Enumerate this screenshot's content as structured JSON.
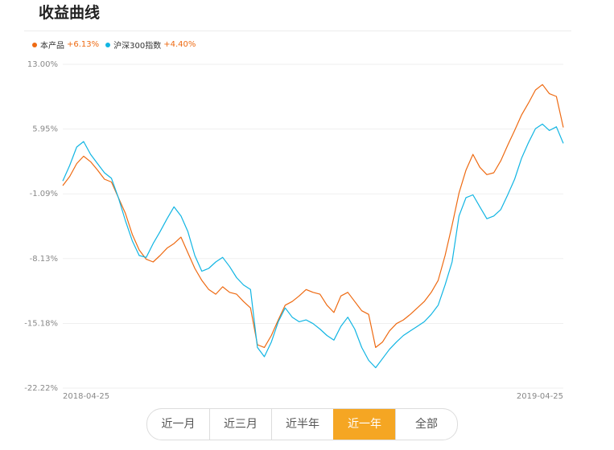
{
  "page": {
    "title": "收益曲线"
  },
  "legend": [
    {
      "name": "本产品",
      "value": "+6.13%",
      "color": "#ee6a12"
    },
    {
      "name": "沪深300指数",
      "value": "+4.40%",
      "color": "#11b5e3"
    }
  ],
  "tabs": [
    {
      "label": "近一月",
      "active": false
    },
    {
      "label": "近三月",
      "active": false
    },
    {
      "label": "近半年",
      "active": false
    },
    {
      "label": "近一年",
      "active": true
    },
    {
      "label": "全部",
      "active": false
    }
  ],
  "chart_data": {
    "type": "line",
    "title": "",
    "xlabel": "",
    "ylabel": "",
    "ylim": [
      -22.22,
      13.0
    ],
    "y_ticks": [
      "13.00%",
      "5.95%",
      "-1.09%",
      "-8.13%",
      "-15.18%",
      "-22.22%"
    ],
    "y_tick_values": [
      13.0,
      5.95,
      -1.09,
      -8.13,
      -15.18,
      -22.22
    ],
    "x_tick_labels": [
      "2018-04-25",
      "2019-04-25"
    ],
    "grid": true,
    "legend_position": "top-left",
    "series": [
      {
        "name": "本产品",
        "color": "#ee6a12",
        "values": [
          -0.2,
          0.8,
          2.2,
          3.0,
          2.4,
          1.5,
          0.5,
          0.2,
          -1.5,
          -3.2,
          -5.5,
          -7.2,
          -8.2,
          -8.5,
          -7.8,
          -7.0,
          -6.5,
          -5.8,
          -7.5,
          -9.2,
          -10.5,
          -11.5,
          -12.0,
          -11.2,
          -11.8,
          -12.0,
          -12.8,
          -13.5,
          -17.5,
          -17.8,
          -16.5,
          -14.8,
          -13.2,
          -12.8,
          -12.2,
          -11.5,
          -11.8,
          -12.0,
          -13.2,
          -14.0,
          -12.2,
          -11.8,
          -12.8,
          -13.8,
          -14.2,
          -17.8,
          -17.2,
          -16.0,
          -15.2,
          -14.8,
          -14.2,
          -13.5,
          -12.8,
          -11.8,
          -10.5,
          -7.8,
          -4.5,
          -1.0,
          1.5,
          3.2,
          1.8,
          1.0,
          1.2,
          2.5,
          4.2,
          5.8,
          7.5,
          8.8,
          10.2,
          10.8,
          9.8,
          9.5,
          6.13
        ]
      },
      {
        "name": "沪深300指数",
        "color": "#11b5e3",
        "values": [
          0.3,
          2.0,
          4.0,
          4.6,
          3.2,
          2.2,
          1.2,
          0.6,
          -1.5,
          -4.0,
          -6.2,
          -7.8,
          -8.0,
          -6.5,
          -5.2,
          -3.8,
          -2.5,
          -3.5,
          -5.2,
          -7.8,
          -9.5,
          -9.2,
          -8.5,
          -8.0,
          -9.0,
          -10.2,
          -11.0,
          -11.5,
          -17.8,
          -18.8,
          -17.2,
          -15.0,
          -13.5,
          -14.5,
          -15.0,
          -14.8,
          -15.2,
          -15.8,
          -16.5,
          -17.0,
          -15.5,
          -14.5,
          -15.8,
          -17.8,
          -19.2,
          -20.0,
          -19.0,
          -18.0,
          -17.2,
          -16.5,
          -16.0,
          -15.5,
          -15.0,
          -14.2,
          -13.2,
          -11.0,
          -8.5,
          -3.5,
          -1.5,
          -1.2,
          -2.5,
          -3.8,
          -3.5,
          -2.8,
          -1.2,
          0.5,
          2.8,
          4.5,
          6.0,
          6.5,
          5.8,
          6.2,
          4.4
        ]
      }
    ]
  }
}
